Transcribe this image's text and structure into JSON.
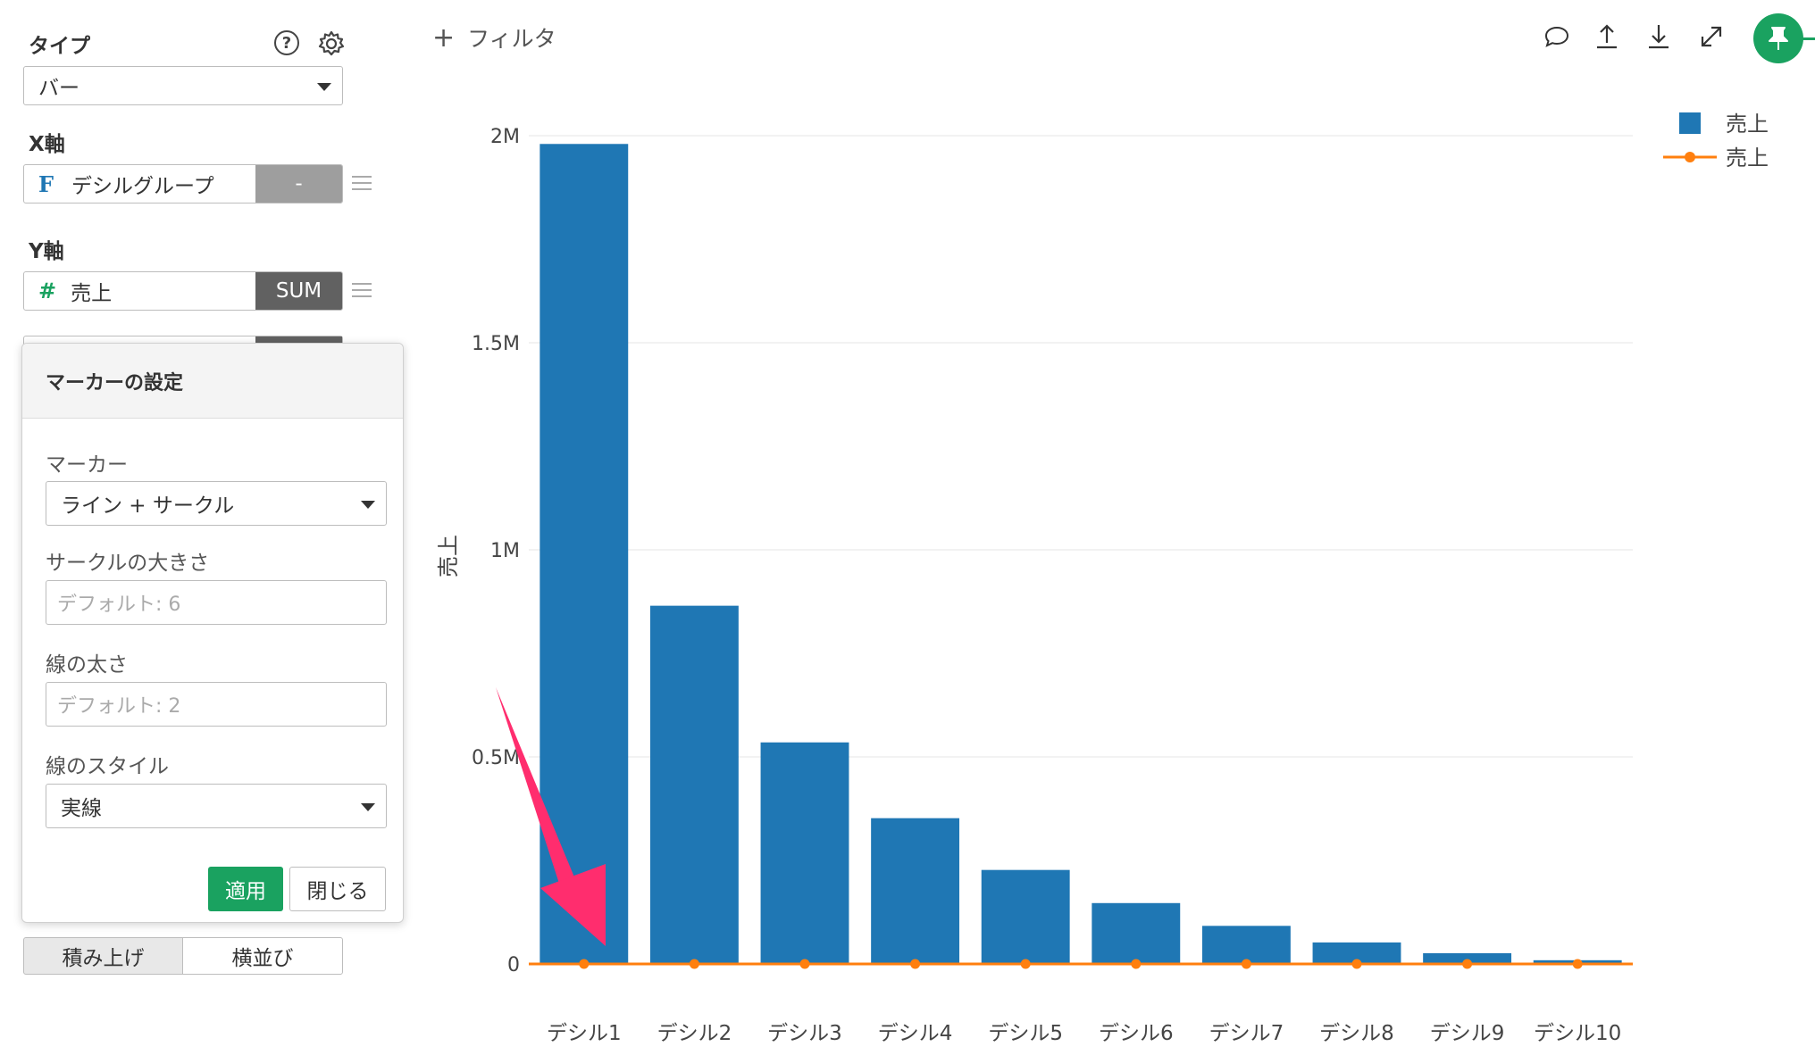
{
  "panel": {
    "type_label": "タイプ",
    "type_value": "バー",
    "x_axis_label": "X軸",
    "x_field": {
      "type_glyph": "F",
      "name": "デシルグループ",
      "agg": "-"
    },
    "y_axis_label": "Y軸",
    "y_field": {
      "type_glyph": "#",
      "name": "売上",
      "agg": "SUM"
    },
    "stack_button": "積み上げ",
    "side_by_side_button": "横並び"
  },
  "popover": {
    "title": "マーカーの設定",
    "marker_label": "マーカー",
    "marker_value": "ライン + サークル",
    "circle_size_label": "サークルの大きさ",
    "circle_size_placeholder": "デフォルト: 6",
    "line_width_label": "線の太さ",
    "line_width_placeholder": "デフォルト: 2",
    "line_style_label": "線のスタイル",
    "line_style_value": "実線",
    "apply_button": "適用",
    "close_button": "閉じる"
  },
  "toolbar": {
    "filter_label": "フィルタ",
    "icons": [
      "comment-icon",
      "upload-icon",
      "download-icon",
      "expand-icon",
      "pin-icon"
    ]
  },
  "colors": {
    "bar": "#1f77b4",
    "line": "#ff7f0e",
    "accent_green": "#1aa260",
    "annotation_arrow": "#ff2d6e"
  },
  "chart_data": {
    "type": "bar",
    "categories": [
      "デシル1",
      "デシル2",
      "デシル3",
      "デシル4",
      "デシル5",
      "デシル6",
      "デシル7",
      "デシル8",
      "デシル9",
      "デシル10"
    ],
    "series": [
      {
        "name": "売上",
        "type": "bar",
        "values": [
          1980000,
          865000,
          535000,
          352000,
          227000,
          147000,
          92000,
          52000,
          26000,
          9000
        ]
      },
      {
        "name": "売上",
        "type": "line",
        "marker": "circle",
        "values": [
          0,
          0,
          0,
          0,
          0,
          0,
          0,
          0,
          0,
          0
        ]
      }
    ],
    "ylabel": "売上",
    "ylim": [
      0,
      2000000
    ],
    "yticks": [
      0,
      500000,
      1000000,
      1500000,
      2000000
    ],
    "ytick_labels": [
      "0",
      "0.5M",
      "1M",
      "1.5M",
      "2M"
    ],
    "grid": true,
    "legend": "top-right"
  }
}
